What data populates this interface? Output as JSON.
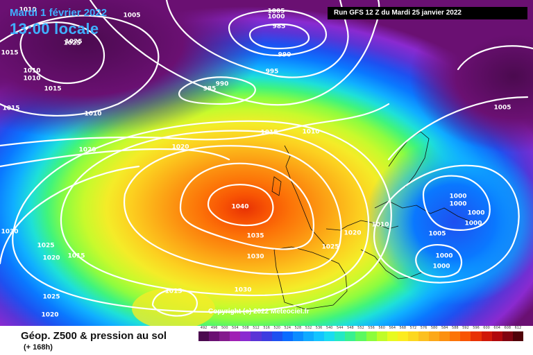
{
  "header": {
    "date": "Mardi 1 février 2022",
    "time": "13:00 locale",
    "run": "Run GFS 12 Z du Mardi 25 janvier 2022"
  },
  "copyright": "Copyright (c) 2022 Meteociel.fr",
  "legend": {
    "title": "Géop. Z500 & pression au sol",
    "subtitle": "(+ 168h)",
    "ticks": [
      "492",
      "496",
      "500",
      "504",
      "508",
      "512",
      "516",
      "520",
      "524",
      "528",
      "532",
      "536",
      "540",
      "544",
      "548",
      "552",
      "556",
      "560",
      "564",
      "568",
      "572",
      "576",
      "580",
      "584",
      "588",
      "592",
      "596",
      "600",
      "604",
      "608",
      "612"
    ],
    "colors": [
      "#4b0a4f",
      "#6a1072",
      "#841a8d",
      "#a020b4",
      "#8a2ad0",
      "#5a34d6",
      "#3c3ce0",
      "#1e50f0",
      "#0a6cff",
      "#0c8cff",
      "#10aaff",
      "#14c4ff",
      "#1adcf0",
      "#24e8c4",
      "#38f090",
      "#5cf860",
      "#8cfc3c",
      "#c0fc28",
      "#e8fa20",
      "#fcec20",
      "#fcd820",
      "#fcc020",
      "#fca818",
      "#fc9010",
      "#fc7408",
      "#f85404",
      "#e83204",
      "#d01808",
      "#b0080c",
      "#800410",
      "#500208"
    ]
  },
  "isobars": [
    {
      "v": "1010",
      "dark": false
    },
    {
      "v": "1005",
      "dark": false
    },
    {
      "v": "1005",
      "dark": false
    },
    {
      "v": "1000",
      "dark": false
    },
    {
      "v": "985",
      "dark": false
    },
    {
      "v": "990",
      "dark": false
    },
    {
      "v": "995",
      "dark": false
    },
    {
      "v": "990",
      "dark": false
    },
    {
      "v": "985",
      "dark": false
    },
    {
      "v": "1025",
      "dark": false
    },
    {
      "v": "1010",
      "dark": false
    },
    {
      "v": "1010",
      "dark": false
    },
    {
      "v": "1015",
      "dark": false
    },
    {
      "v": "1015",
      "dark": false
    },
    {
      "v": "1010",
      "dark": false
    },
    {
      "v": "1015",
      "dark": false
    },
    {
      "v": "1010",
      "dark": false
    },
    {
      "v": "1020",
      "dark": false
    },
    {
      "v": "1020",
      "dark": false
    },
    {
      "v": "1005",
      "dark": false
    },
    {
      "v": "1040",
      "dark": false
    },
    {
      "v": "1035",
      "dark": false
    },
    {
      "v": "1030",
      "dark": false
    },
    {
      "v": "1025",
      "dark": false
    },
    {
      "v": "1020",
      "dark": false
    },
    {
      "v": "1030",
      "dark": false
    },
    {
      "v": "1025",
      "dark": false
    },
    {
      "v": "1020",
      "dark": false
    },
    {
      "v": "1015",
      "dark": false
    },
    {
      "v": "1030",
      "dark": false
    },
    {
      "v": "1025",
      "dark": false
    },
    {
      "v": "1020",
      "dark": false
    },
    {
      "v": "1015",
      "dark": false
    },
    {
      "v": "1015",
      "dark": false
    },
    {
      "v": "1010",
      "dark": false
    },
    {
      "v": "1000",
      "dark": false
    },
    {
      "v": "1000",
      "dark": false
    },
    {
      "v": "1000",
      "dark": false
    },
    {
      "v": "1000",
      "dark": false
    },
    {
      "v": "1005",
      "dark": false
    },
    {
      "v": "1000",
      "dark": false
    },
    {
      "v": "1000",
      "dark": false
    },
    {
      "v": "1025",
      "dark": false
    }
  ]
}
